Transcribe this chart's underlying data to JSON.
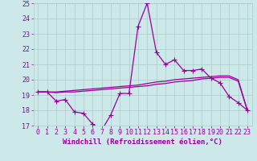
{
  "x": [
    0,
    1,
    2,
    3,
    4,
    5,
    6,
    7,
    8,
    9,
    10,
    11,
    12,
    13,
    14,
    15,
    16,
    17,
    18,
    19,
    20,
    21,
    22,
    23
  ],
  "line1": [
    19.2,
    19.2,
    18.6,
    18.7,
    17.9,
    17.8,
    17.1,
    16.7,
    17.7,
    19.1,
    19.1,
    23.5,
    25.0,
    21.8,
    21.0,
    21.3,
    20.6,
    20.6,
    20.7,
    20.1,
    19.8,
    18.9,
    18.5,
    18.0
  ],
  "line2": [
    19.2,
    19.2,
    19.15,
    19.2,
    19.2,
    19.25,
    19.3,
    19.35,
    19.4,
    19.45,
    19.5,
    19.55,
    19.6,
    19.7,
    19.75,
    19.85,
    19.9,
    19.95,
    20.05,
    20.1,
    20.15,
    20.15,
    19.9,
    18.0
  ],
  "line3": [
    19.2,
    19.2,
    19.2,
    19.25,
    19.3,
    19.35,
    19.4,
    19.45,
    19.5,
    19.55,
    19.6,
    19.65,
    19.75,
    19.85,
    19.9,
    20.0,
    20.05,
    20.1,
    20.15,
    20.2,
    20.25,
    20.25,
    20.0,
    18.0
  ],
  "bg_color": "#cce8e8",
  "grid_color": "#aacccc",
  "line_color": "#990099",
  "xlabel": "Windchill (Refroidissement éolien,°C)",
  "ylim": [
    17,
    25
  ],
  "xlim": [
    -0.5,
    23.5
  ],
  "yticks": [
    17,
    18,
    19,
    20,
    21,
    22,
    23,
    24,
    25
  ],
  "xticks": [
    0,
    1,
    2,
    3,
    4,
    5,
    6,
    7,
    8,
    9,
    10,
    11,
    12,
    13,
    14,
    15,
    16,
    17,
    18,
    19,
    20,
    21,
    22,
    23
  ],
  "xlabel_fontsize": 6.5,
  "tick_fontsize": 6.0,
  "marker_size": 2.0,
  "line_width": 0.9
}
